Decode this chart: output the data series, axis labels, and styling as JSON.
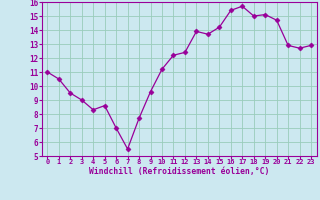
{
  "x": [
    0,
    1,
    2,
    3,
    4,
    5,
    6,
    7,
    8,
    9,
    10,
    11,
    12,
    13,
    14,
    15,
    16,
    17,
    18,
    19,
    20,
    21,
    22,
    23
  ],
  "y": [
    11.0,
    10.5,
    9.5,
    9.0,
    8.3,
    8.6,
    7.0,
    5.5,
    7.7,
    9.6,
    11.2,
    12.2,
    12.4,
    13.9,
    13.7,
    14.2,
    15.4,
    15.7,
    15.0,
    15.1,
    14.7,
    12.9,
    12.7,
    12.9
  ],
  "line_color": "#990099",
  "marker": "D",
  "marker_size": 2.5,
  "bg_color": "#cce8f0",
  "grid_color": "#99ccbb",
  "xlabel": "Windchill (Refroidissement éolien,°C)",
  "xlabel_color": "#990099",
  "tick_color": "#990099",
  "ylim": [
    5,
    16
  ],
  "xlim": [
    -0.5,
    23.5
  ],
  "yticks": [
    5,
    6,
    7,
    8,
    9,
    10,
    11,
    12,
    13,
    14,
    15,
    16
  ],
  "xticks": [
    0,
    1,
    2,
    3,
    4,
    5,
    6,
    7,
    8,
    9,
    10,
    11,
    12,
    13,
    14,
    15,
    16,
    17,
    18,
    19,
    20,
    21,
    22,
    23
  ]
}
